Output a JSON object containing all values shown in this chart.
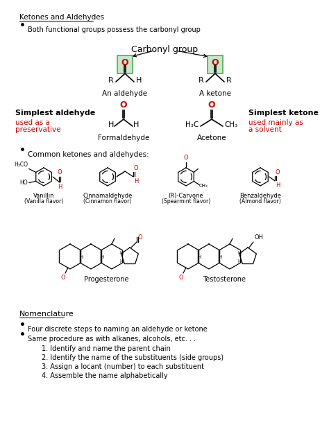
{
  "background_color": "#ffffff",
  "black": "#000000",
  "red": "#cc0000",
  "green_edge": "#4CAF50",
  "green_fill": "#c8e6c9",
  "figsize": [
    4.74,
    6.13
  ],
  "dpi": 100,
  "header": "Ketones and Aldehydes",
  "bullet1": "Both functional groups possess the carbonyl group",
  "carbonyl_label": "Carbonyl group",
  "aldehyde_label": "An aldehyde",
  "ketone_label": "A ketone",
  "simplest_aldehyde": "Simplest aldehyde",
  "used_as": "used as a",
  "preservative": "preservative",
  "formaldehyde": "Formaldehyde",
  "simplest_ketone": "Simplest ketone",
  "used_mainly": "used mainly as",
  "a_solvent": "a solvent",
  "acetone": "Acetone",
  "common_bullet": "Common ketones and aldehydes:",
  "vanillin": "Vanillin",
  "vanillin_flavor": "(Vanilla flavor)",
  "cinnamaldehyde": "Cinnamaldehyde",
  "cinnamon_flavor": "(Cinnamon flavor)",
  "carvone": "(R)-Carvone",
  "spearmint_flavor": "(Spearmint flavor)",
  "benzaldehyde": "Benzaldehyde",
  "almond_flavor": "(Almond flavor)",
  "progesterone": "Progesterone",
  "testosterone": "Testosterone",
  "nomenclature": "Nomenclature",
  "nom_bullet1": "Four discrete steps to naming an aldehyde or ketone",
  "nom_bullet2": "Same procedure as with alkanes, alcohols, etc. . .",
  "step1": "1. Identify and name the parent chain",
  "step2": "2. Identify the name of the substituents (side groups)",
  "step3": "3. Assign a locant (number) to each substituent",
  "step4": "4. Assemble the name alphabetically"
}
